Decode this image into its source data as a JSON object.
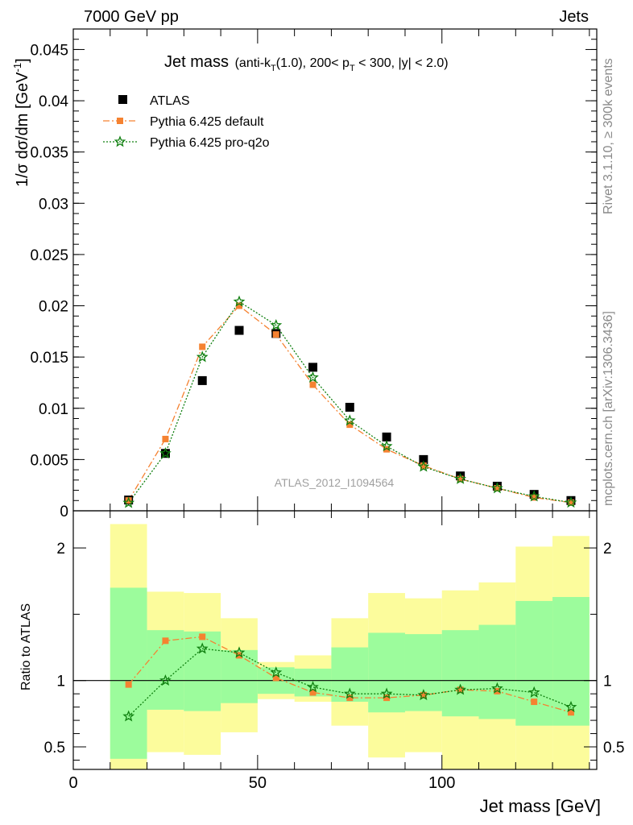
{
  "header": {
    "left": "7000 GeV pp",
    "right": "Jets"
  },
  "side_labels": {
    "rivet": "Rivet 3.1.10, ≥ 300k events",
    "mcplots": "mcplots.cern.ch [arXiv:1306.3436]"
  },
  "analysis_id": "ATLAS_2012_I1094564",
  "colors": {
    "data": "#000000",
    "default": "#f58231",
    "proq2o": "#108010",
    "band_inner": "#9cfc9c",
    "band_outer": "#fcfc9c"
  },
  "chart_data": [
    {
      "type": "scatter",
      "title": "Jet mass (anti-kT(1.0), 200< pT < 300, |y| < 2.0)",
      "title_parts": {
        "main": "Jet mass",
        "a": "(anti-k",
        "a_sub": "T",
        "b": "(1.0), 200< p",
        "b_sub": "T",
        "c": " < 300, |y| < 2.0)"
      },
      "ylabel": "1/σ dσ/dm [GeV⁻¹]",
      "ylabel_parts": {
        "main": "1/σ dσ/dm [GeV",
        "sup": "-1",
        "close": "]"
      },
      "xlim": [
        0,
        142
      ],
      "ylim": [
        0,
        0.047
      ],
      "yticks": [
        0,
        0.005,
        0.01,
        0.015,
        0.02,
        0.025,
        0.03,
        0.035,
        0.04,
        0.045
      ],
      "ytick_labels": [
        "0",
        "0.005",
        "0.01",
        "0.015",
        "0.02",
        "0.025",
        "0.03",
        "0.035",
        "0.04",
        "0.045"
      ],
      "legend_position": "top-left",
      "x": [
        15,
        25,
        35,
        45,
        55,
        65,
        75,
        85,
        95,
        105,
        115,
        125,
        135
      ],
      "series": [
        {
          "name": "ATLAS",
          "marker": "square",
          "values": [
            0.00105,
            0.0056,
            0.0127,
            0.0176,
            0.0173,
            0.014,
            0.0101,
            0.0072,
            0.005,
            0.0034,
            0.0024,
            0.0016,
            0.001
          ]
        },
        {
          "name": "Pythia 6.425 default",
          "marker": "square-small",
          "line": "dashdot",
          "values": [
            0.00101,
            0.007,
            0.016,
            0.02,
            0.0172,
            0.0123,
            0.0084,
            0.006,
            0.0044,
            0.0031,
            0.0022,
            0.0013,
            0.0008
          ]
        },
        {
          "name": "Pythia 6.425 pro-q2o",
          "marker": "star",
          "line": "dotted",
          "values": [
            0.00077,
            0.0056,
            0.015,
            0.0204,
            0.0181,
            0.013,
            0.0088,
            0.0063,
            0.0043,
            0.0031,
            0.0022,
            0.0014,
            0.0008
          ]
        }
      ]
    },
    {
      "type": "scatter",
      "ylabel": "Ratio to ATLAS",
      "xlabel": "Jet mass [GeV]",
      "xlim": [
        0,
        142
      ],
      "ylim": [
        0.33,
        2.28
      ],
      "xticks": [
        0,
        50,
        100
      ],
      "xtick_labels": [
        "0",
        "50",
        "100"
      ],
      "yticks": [
        0.5,
        1,
        2
      ],
      "ytick_labels": [
        "0.5",
        "1",
        "2"
      ],
      "bins": [
        [
          10,
          20
        ],
        [
          20,
          30
        ],
        [
          30,
          40
        ],
        [
          40,
          50
        ],
        [
          50,
          60
        ],
        [
          60,
          70
        ],
        [
          70,
          80
        ],
        [
          80,
          90
        ],
        [
          90,
          100
        ],
        [
          100,
          110
        ],
        [
          110,
          120
        ],
        [
          120,
          130
        ],
        [
          130,
          140
        ]
      ],
      "band_inner": [
        [
          0.41,
          1.7
        ],
        [
          0.78,
          1.38
        ],
        [
          0.77,
          1.37
        ],
        [
          0.83,
          1.23
        ],
        [
          0.9,
          1.1
        ],
        [
          0.88,
          1.09
        ],
        [
          0.84,
          1.25
        ],
        [
          0.76,
          1.36
        ],
        [
          0.77,
          1.35
        ],
        [
          0.73,
          1.38
        ],
        [
          0.71,
          1.42
        ],
        [
          0.66,
          1.6
        ],
        [
          0.66,
          1.63
        ]
      ],
      "band_outer": [
        [
          0.33,
          2.18
        ],
        [
          0.46,
          1.67
        ],
        [
          0.44,
          1.66
        ],
        [
          0.61,
          1.47
        ],
        [
          0.86,
          1.14
        ],
        [
          0.84,
          1.19
        ],
        [
          0.66,
          1.47
        ],
        [
          0.42,
          1.66
        ],
        [
          0.46,
          1.62
        ],
        [
          0.33,
          1.68
        ],
        [
          0.33,
          1.74
        ],
        [
          0.33,
          2.01
        ],
        [
          0.33,
          2.09
        ]
      ],
      "series": [
        {
          "name": "Pythia 6.425 default",
          "values": [
            0.97,
            1.3,
            1.33,
            1.19,
            1.02,
            0.91,
            0.87,
            0.87,
            0.89,
            0.93,
            0.92,
            0.84,
            0.76
          ]
        },
        {
          "name": "Pythia 6.425 pro-q2o",
          "values": [
            0.73,
            1.0,
            1.24,
            1.21,
            1.06,
            0.95,
            0.9,
            0.9,
            0.89,
            0.93,
            0.94,
            0.91,
            0.8
          ]
        }
      ]
    }
  ]
}
